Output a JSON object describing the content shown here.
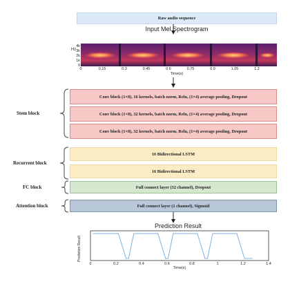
{
  "raw_input": {
    "label": "Raw audio sequence"
  },
  "spectrogram": {
    "title": "Input Mel Spectrogram",
    "ylabel": "Hz",
    "yticks": [
      "4k",
      "3k",
      "2k",
      "1k",
      "0"
    ],
    "xticks": [
      "0",
      "0.15",
      "0.3",
      "0.45",
      "0.6",
      "0.75",
      "0.9",
      "1.05",
      "1.2"
    ],
    "xlabel": "Time(s)"
  },
  "stem_block": {
    "label": "Stem block",
    "rows": [
      {
        "label": "Conv block (1×8), 16 kernels, batch norm, Relu, (1×4) average pooling, Dropout"
      },
      {
        "label": "Conv block (1×8), 32 kernels, batch norm, Relu, (1×4) average pooling, Dropout"
      },
      {
        "label": "Conv block (1×8), 32 kernels, batch norm, Relu, (1×4) average pooling, Dropout"
      }
    ]
  },
  "recurrent_block": {
    "label": "Recurrent block",
    "rows": [
      {
        "label": "16 Bidirectional LSTM"
      },
      {
        "label": "16 Bidirectional LSTM"
      }
    ]
  },
  "fc_block": {
    "label": "FC block",
    "content": "Full connect layer (32 channel), Dropout"
  },
  "attention_block": {
    "label": "Attention block",
    "content": "Full connect layer (1 channel), Sigmoid"
  },
  "prediction": {
    "title": "Prediction Result",
    "ylabel": "Prediction Result",
    "xlabel": "Time(s)",
    "xticks": [
      "0",
      "0.2",
      "0.4",
      "0.6",
      "0.8",
      "1",
      "1.2",
      "1.4"
    ]
  },
  "colors": {
    "raw": "#dce9f8",
    "conv": "#f6c9c7",
    "lstm": "#fbecc6",
    "fc": "#d6e7d0",
    "attention": "#b9c8d8",
    "prediction_line": "#7fb2e5"
  },
  "chart_data": {
    "type": "line",
    "title": "Prediction Result",
    "xlabel": "Time(s)",
    "ylabel": "Prediction Result",
    "xlim": [
      0,
      1.4
    ],
    "ylim": [
      0,
      1
    ],
    "x": [
      0.02,
      0.22,
      0.28,
      0.3,
      0.34,
      0.53,
      0.59,
      0.61,
      0.65,
      0.84,
      0.9,
      0.92,
      0.96,
      1.15,
      1.21,
      1.23,
      1.27
    ],
    "series": [
      {
        "values": [
          1,
          1,
          0,
          0,
          1,
          1,
          0,
          0,
          1,
          1,
          0,
          0,
          1,
          1,
          0,
          0,
          0
        ]
      }
    ]
  }
}
